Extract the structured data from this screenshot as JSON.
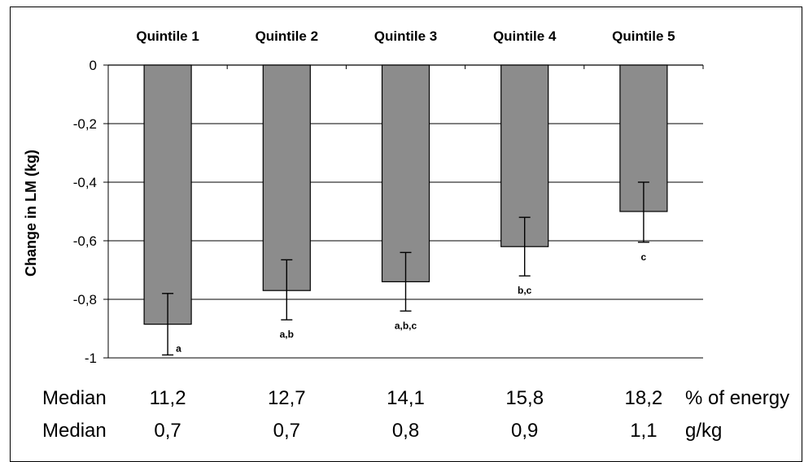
{
  "chart_data": {
    "type": "bar",
    "categories": [
      "Quintile 1",
      "Quintile 2",
      "Quintile 3",
      "Quintile 4",
      "Quintile 5"
    ],
    "series": [
      {
        "values": [
          -0.885,
          -0.77,
          -0.74,
          -0.62,
          -0.5
        ],
        "error_low": [
          -0.99,
          -0.87,
          -0.84,
          -0.72,
          -0.605
        ],
        "error_high": [
          -0.78,
          -0.665,
          -0.64,
          -0.52,
          -0.4
        ],
        "significance": [
          "a",
          "a,b",
          "a,b,c",
          "b,c",
          "c"
        ]
      }
    ],
    "ylabel": "Change in LM (kg)",
    "ylim": [
      -1,
      0
    ],
    "yticks": [
      0,
      -0.2,
      -0.4,
      -0.6,
      -0.8,
      -1
    ],
    "ytick_labels": [
      "0",
      "-0,2",
      "-0,4",
      "-0,6",
      "-0,8",
      "-1"
    ],
    "grid": true,
    "bar_color": "#8c8c8c",
    "footer_rows": [
      {
        "label": "Median",
        "values": [
          "11,2",
          "12,7",
          "14,1",
          "15,8",
          "18,2"
        ],
        "unit": "% of energy"
      },
      {
        "label": "Median",
        "values": [
          "0,7",
          "0,7",
          "0,8",
          "0,9",
          "1,1"
        ],
        "unit": "g/kg"
      }
    ]
  }
}
